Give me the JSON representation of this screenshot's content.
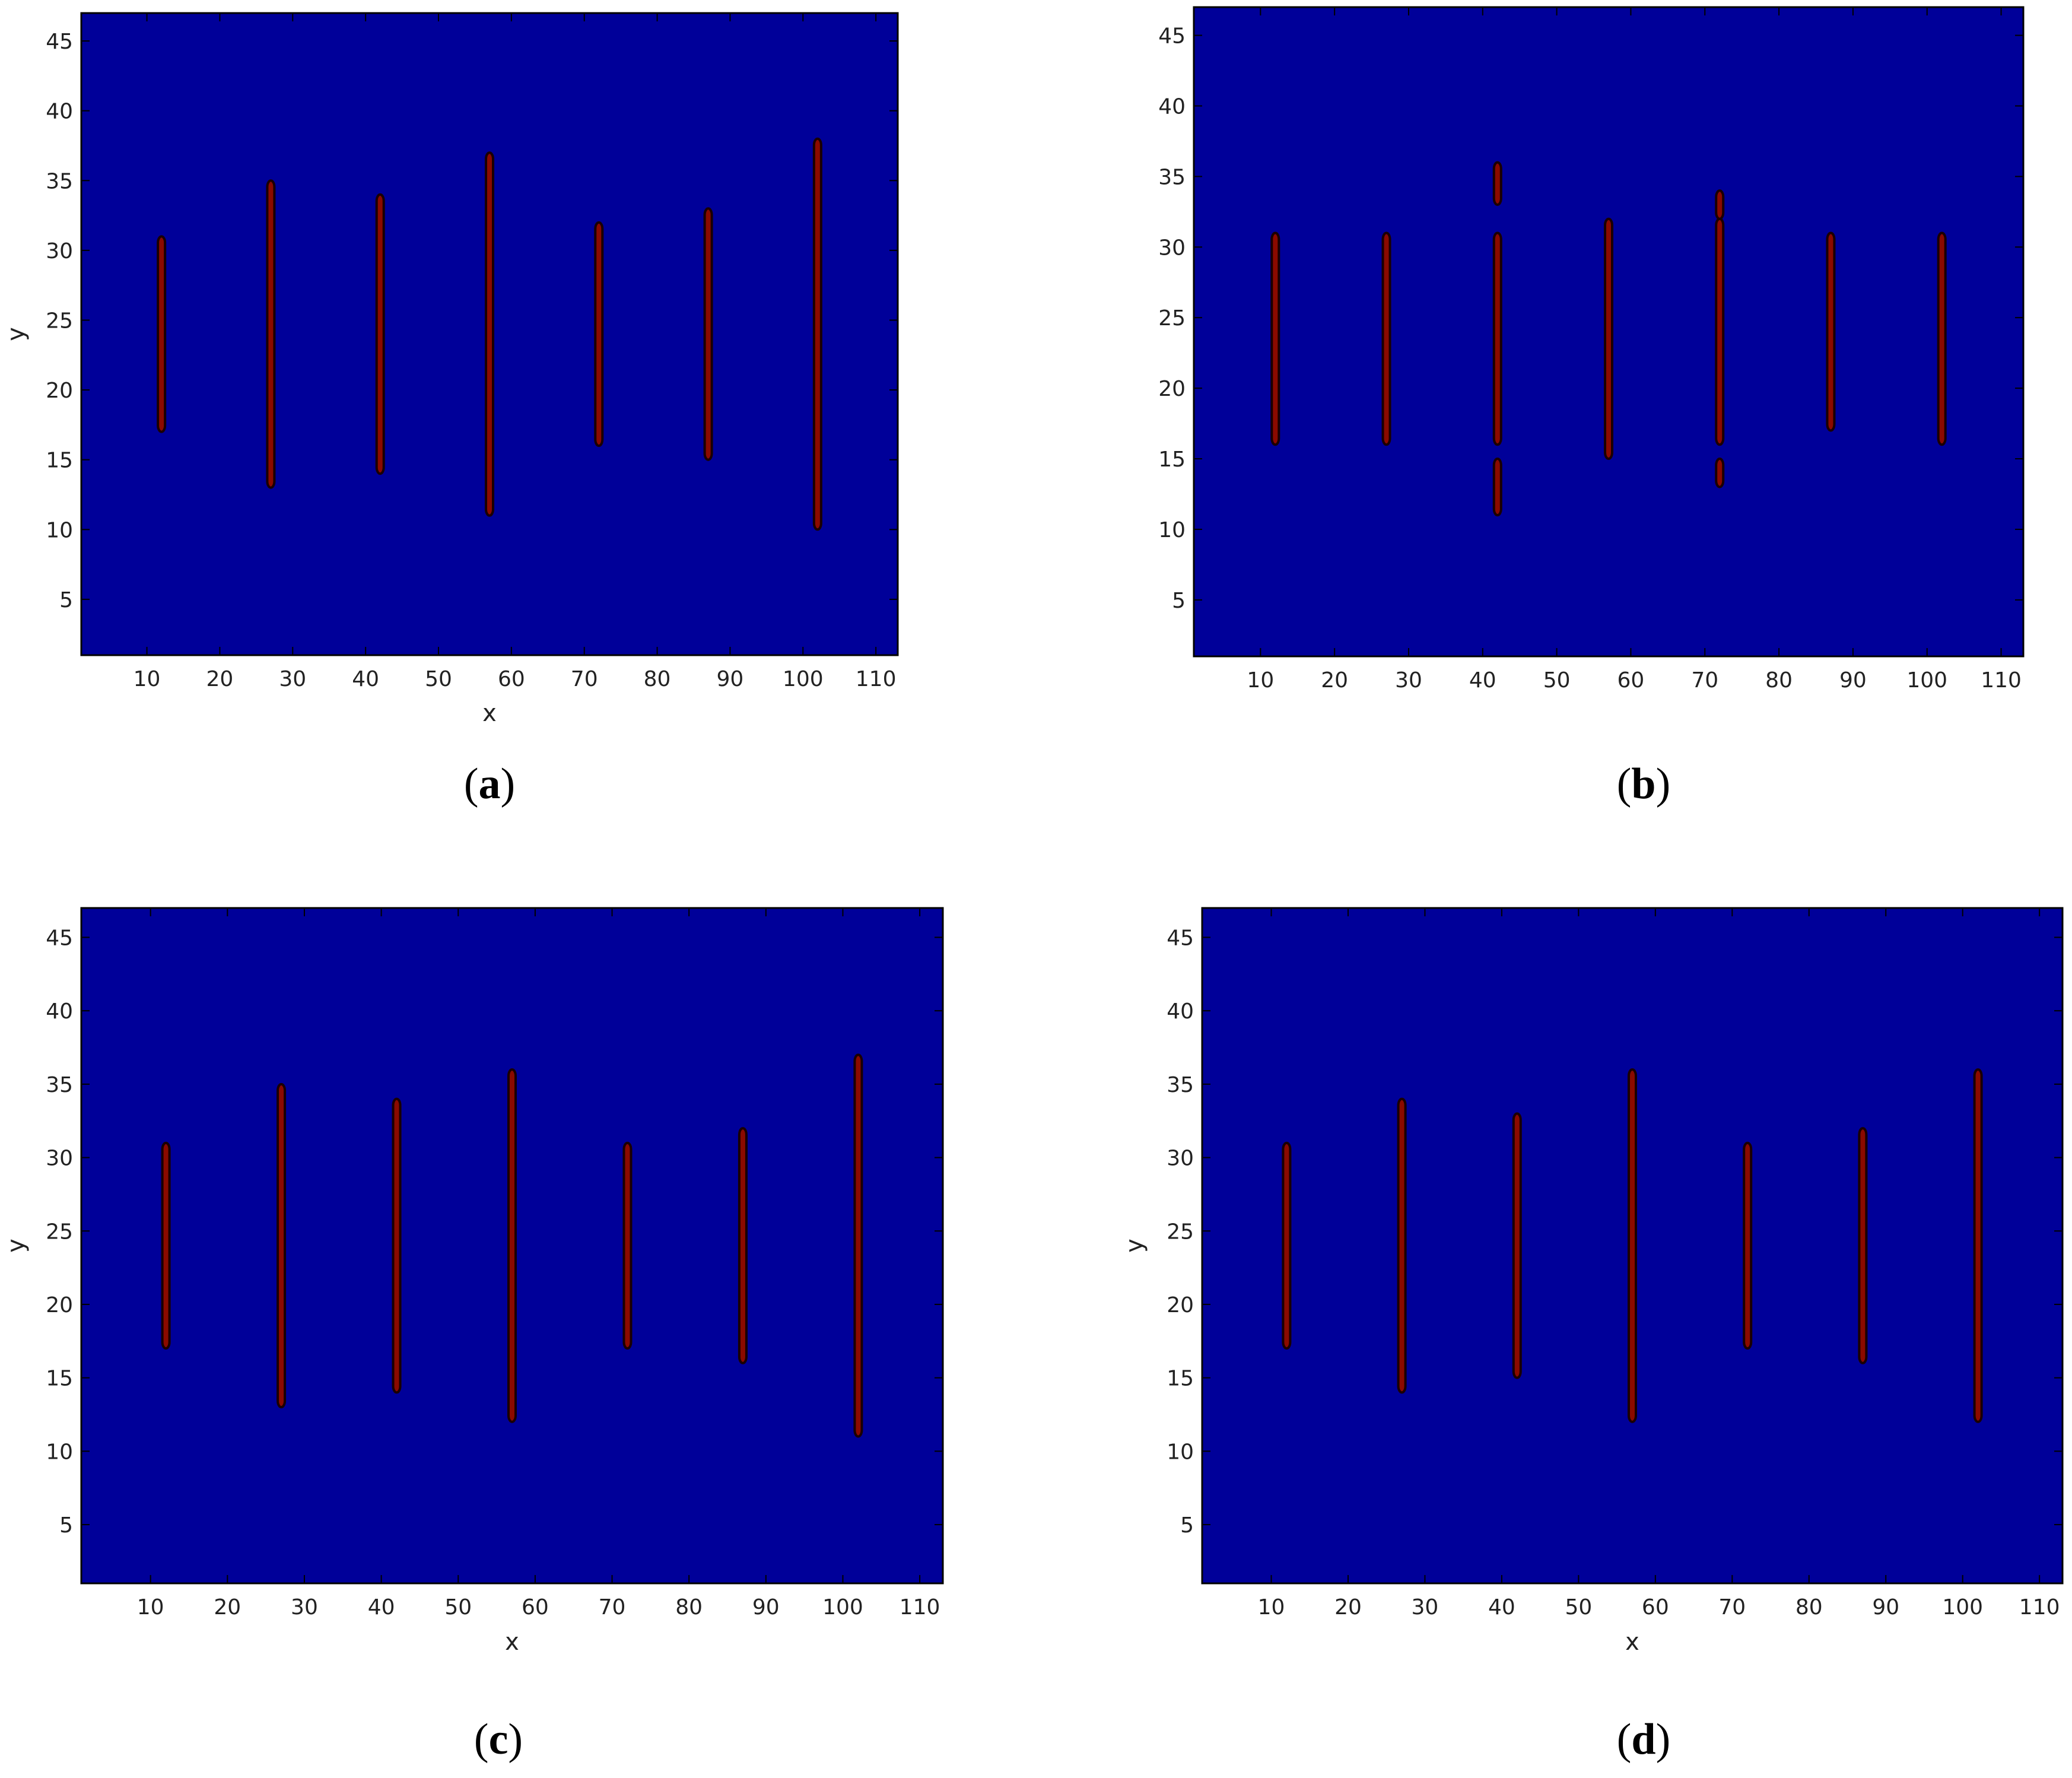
{
  "colors": {
    "background": "#000099",
    "bar_fill": "#8b0a00",
    "bar_edge": "#1a0000",
    "frame": "#000000",
    "page": "#ffffff"
  },
  "chart_data": [
    {
      "type": "heatmap",
      "panel": "a",
      "label_open": "(",
      "label_letter": "a",
      "label_close": ")",
      "xlabel": "x",
      "ylabel": "y",
      "xlim": [
        1,
        113
      ],
      "ylim": [
        1,
        47
      ],
      "xticks": [
        10,
        20,
        30,
        40,
        50,
        60,
        70,
        80,
        90,
        100,
        110
      ],
      "yticks": [
        5,
        10,
        15,
        20,
        25,
        30,
        35,
        40,
        45
      ],
      "bars": [
        {
          "x": 12,
          "y_start": 17,
          "y_end": 31
        },
        {
          "x": 27,
          "y_start": 13,
          "y_end": 35
        },
        {
          "x": 42,
          "y_start": 14,
          "y_end": 34
        },
        {
          "x": 57,
          "y_start": 11,
          "y_end": 37
        },
        {
          "x": 72,
          "y_start": 16,
          "y_end": 32
        },
        {
          "x": 87,
          "y_start": 15,
          "y_end": 33
        },
        {
          "x": 102,
          "y_start": 10,
          "y_end": 38
        }
      ]
    },
    {
      "type": "heatmap",
      "panel": "b",
      "label_open": "(",
      "label_letter": "b",
      "label_close": ")",
      "xlabel": "",
      "ylabel": "",
      "xlim": [
        1,
        113
      ],
      "ylim": [
        1,
        47
      ],
      "xticks": [
        10,
        20,
        30,
        40,
        50,
        60,
        70,
        80,
        90,
        100,
        110
      ],
      "yticks": [
        5,
        10,
        15,
        20,
        25,
        30,
        35,
        40,
        45
      ],
      "bars": [
        {
          "x": 12,
          "y_start": 16,
          "y_end": 31
        },
        {
          "x": 27,
          "y_start": 16,
          "y_end": 31
        },
        {
          "x": 42,
          "y_start": 16,
          "y_end": 31
        },
        {
          "x": 42,
          "y_start": 33,
          "y_end": 36
        },
        {
          "x": 42,
          "y_start": 11,
          "y_end": 15
        },
        {
          "x": 57,
          "y_start": 15,
          "y_end": 32
        },
        {
          "x": 72,
          "y_start": 16,
          "y_end": 32
        },
        {
          "x": 72,
          "y_start": 13,
          "y_end": 15
        },
        {
          "x": 72,
          "y_start": 32,
          "y_end": 34
        },
        {
          "x": 87,
          "y_start": 17,
          "y_end": 31
        },
        {
          "x": 102,
          "y_start": 16,
          "y_end": 31
        }
      ]
    },
    {
      "type": "heatmap",
      "panel": "c",
      "label_open": "(",
      "label_letter": "c",
      "label_close": ")",
      "xlabel": "x",
      "ylabel": "y",
      "xlim": [
        1,
        113
      ],
      "ylim": [
        1,
        47
      ],
      "xticks": [
        10,
        20,
        30,
        40,
        50,
        60,
        70,
        80,
        90,
        100,
        110
      ],
      "yticks": [
        5,
        10,
        15,
        20,
        25,
        30,
        35,
        40,
        45
      ],
      "bars": [
        {
          "x": 12,
          "y_start": 17,
          "y_end": 31
        },
        {
          "x": 27,
          "y_start": 13,
          "y_end": 35
        },
        {
          "x": 42,
          "y_start": 14,
          "y_end": 34
        },
        {
          "x": 57,
          "y_start": 12,
          "y_end": 36
        },
        {
          "x": 72,
          "y_start": 17,
          "y_end": 31
        },
        {
          "x": 87,
          "y_start": 16,
          "y_end": 32
        },
        {
          "x": 102,
          "y_start": 11,
          "y_end": 37
        }
      ]
    },
    {
      "type": "heatmap",
      "panel": "d",
      "label_open": "(",
      "label_letter": "d",
      "label_close": ")",
      "xlabel": "x",
      "ylabel": "y",
      "xlim": [
        1,
        113
      ],
      "ylim": [
        1,
        47
      ],
      "xticks": [
        10,
        20,
        30,
        40,
        50,
        60,
        70,
        80,
        90,
        100,
        110
      ],
      "yticks": [
        5,
        10,
        15,
        20,
        25,
        30,
        35,
        40,
        45
      ],
      "bars": [
        {
          "x": 12,
          "y_start": 17,
          "y_end": 31
        },
        {
          "x": 27,
          "y_start": 14,
          "y_end": 34
        },
        {
          "x": 42,
          "y_start": 15,
          "y_end": 33
        },
        {
          "x": 57,
          "y_start": 12,
          "y_end": 36
        },
        {
          "x": 72,
          "y_start": 17,
          "y_end": 31
        },
        {
          "x": 87,
          "y_start": 16,
          "y_end": 32
        },
        {
          "x": 102,
          "y_start": 12,
          "y_end": 36
        }
      ]
    }
  ]
}
